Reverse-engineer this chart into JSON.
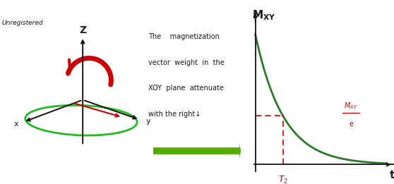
{
  "background_color": "#ffffff",
  "title_text": "Unregistered",
  "description_lines": [
    "The    magnetization",
    "vector  weight  in  the",
    "XOY  plane  attenuate",
    "with the right↓"
  ],
  "axis_label_z": "Z",
  "axis_label_y": "y",
  "axis_label_x": "x",
  "mxy_label": "$\\mathbf{M_{XY}}$",
  "t_label": "t",
  "t2_label": "$T_2$",
  "fraction_top": "$M_{XY}$",
  "fraction_bot": "e",
  "curve_color": "#2a7a2a",
  "axis_color": "#111111",
  "dashed_color": "#cc0000",
  "arrow_fill_color": "#55aa00",
  "ellipse_color": "#22bb22",
  "red_arrow_color": "#cc0000",
  "text_color": "#1a1a1a",
  "figsize": [
    5.58,
    2.61
  ],
  "dpi": 100
}
